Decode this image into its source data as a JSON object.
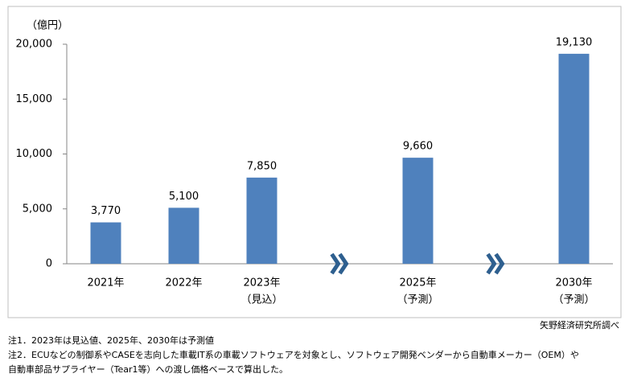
{
  "chart_data": {
    "type": "bar",
    "unit_label": "（億円）",
    "categories": [
      "2021年",
      "2022年",
      "2023年",
      null,
      "2025年",
      null,
      "2030年"
    ],
    "category_notes": [
      null,
      null,
      "（見込）",
      null,
      "（予測）",
      null,
      "（予測）"
    ],
    "values": [
      3770,
      5100,
      7850,
      null,
      9660,
      null,
      19130
    ],
    "value_labels": [
      "3,770",
      "5,100",
      "7,850",
      null,
      "9,660",
      null,
      "19,130"
    ],
    "color": "#4f81bd",
    "ylim": [
      0,
      20000
    ],
    "yticks": [
      0,
      {
        "value": 5000,
        "label": "5,000"
      },
      {
        "value": 10000,
        "label": "10,000"
      },
      {
        "value": 15000,
        "label": "15,000"
      },
      {
        "value": 20000,
        "label": "20,000"
      }
    ],
    "grid": false,
    "source": "矢野経済研究所調べ",
    "notes": [
      "注1．2023年は見込値、2025年、2030年は予測値",
      "注2．ECUなどの制御系やCASEを志向した車載IT系の車載ソフトウェアを対象とし、ソフトウェア開発ベンダーから自動車メーカー（OEM）や",
      "自動車部品サプライヤー（Tear1等）への渡し価格ベースで算出した。"
    ]
  }
}
